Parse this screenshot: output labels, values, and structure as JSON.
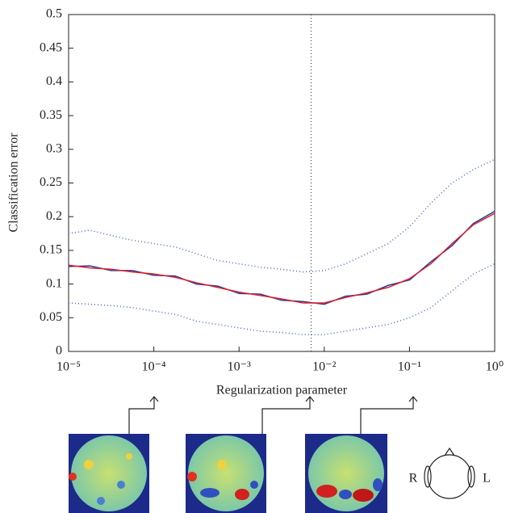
{
  "chart_data": {
    "type": "line",
    "xlabel": "Regularization parameter",
    "ylabel": "Classification error",
    "xscale": "log",
    "xlim": [
      1e-05,
      1
    ],
    "ylim": [
      0,
      0.5
    ],
    "xticks": [
      {
        "value": 1e-05,
        "label": "10⁻⁵"
      },
      {
        "value": 0.0001,
        "label": "10⁻⁴"
      },
      {
        "value": 0.001,
        "label": "10⁻³"
      },
      {
        "value": 0.01,
        "label": "10⁻²"
      },
      {
        "value": 0.1,
        "label": "10⁻¹"
      },
      {
        "value": 1,
        "label": "10⁰"
      }
    ],
    "yticks": [
      0,
      0.05,
      0.1,
      0.15,
      0.2,
      0.25,
      0.3,
      0.35,
      0.4,
      0.45,
      0.5
    ],
    "vline": 0.007,
    "x": [
      1e-05,
      1.78e-05,
      3.16e-05,
      5.62e-05,
      0.0001,
      0.000178,
      0.000316,
      0.000562,
      0.001,
      0.00178,
      0.00316,
      0.00562,
      0.01,
      0.0178,
      0.0316,
      0.0562,
      0.1,
      0.178,
      0.316,
      0.562,
      1
    ],
    "series": [
      {
        "color": "#5570c0",
        "style": "dotted",
        "values": [
          0.175,
          0.18,
          0.172,
          0.165,
          0.16,
          0.155,
          0.145,
          0.135,
          0.13,
          0.125,
          0.122,
          0.118,
          0.12,
          0.13,
          0.145,
          0.16,
          0.185,
          0.22,
          0.25,
          0.27,
          0.285
        ]
      },
      {
        "color": "#5570c0",
        "style": "dotted",
        "values": [
          0.072,
          0.07,
          0.068,
          0.065,
          0.06,
          0.055,
          0.045,
          0.04,
          0.035,
          0.03,
          0.028,
          0.025,
          0.025,
          0.03,
          0.035,
          0.04,
          0.05,
          0.065,
          0.09,
          0.115,
          0.13
        ]
      },
      {
        "color": "#1f3f9f",
        "style": "solid",
        "values": [
          0.126,
          0.127,
          0.12,
          0.12,
          0.113,
          0.112,
          0.1,
          0.097,
          0.086,
          0.085,
          0.076,
          0.074,
          0.07,
          0.082,
          0.085,
          0.098,
          0.106,
          0.133,
          0.157,
          0.19,
          0.208
        ]
      },
      {
        "color": "#e0202a",
        "style": "solid",
        "values": [
          0.128,
          0.124,
          0.122,
          0.118,
          0.115,
          0.11,
          0.102,
          0.095,
          0.088,
          0.083,
          0.078,
          0.072,
          0.072,
          0.08,
          0.087,
          0.095,
          0.108,
          0.13,
          0.16,
          0.188,
          0.205
        ]
      }
    ]
  },
  "head_labels": {
    "right": "R",
    "left": "L"
  }
}
